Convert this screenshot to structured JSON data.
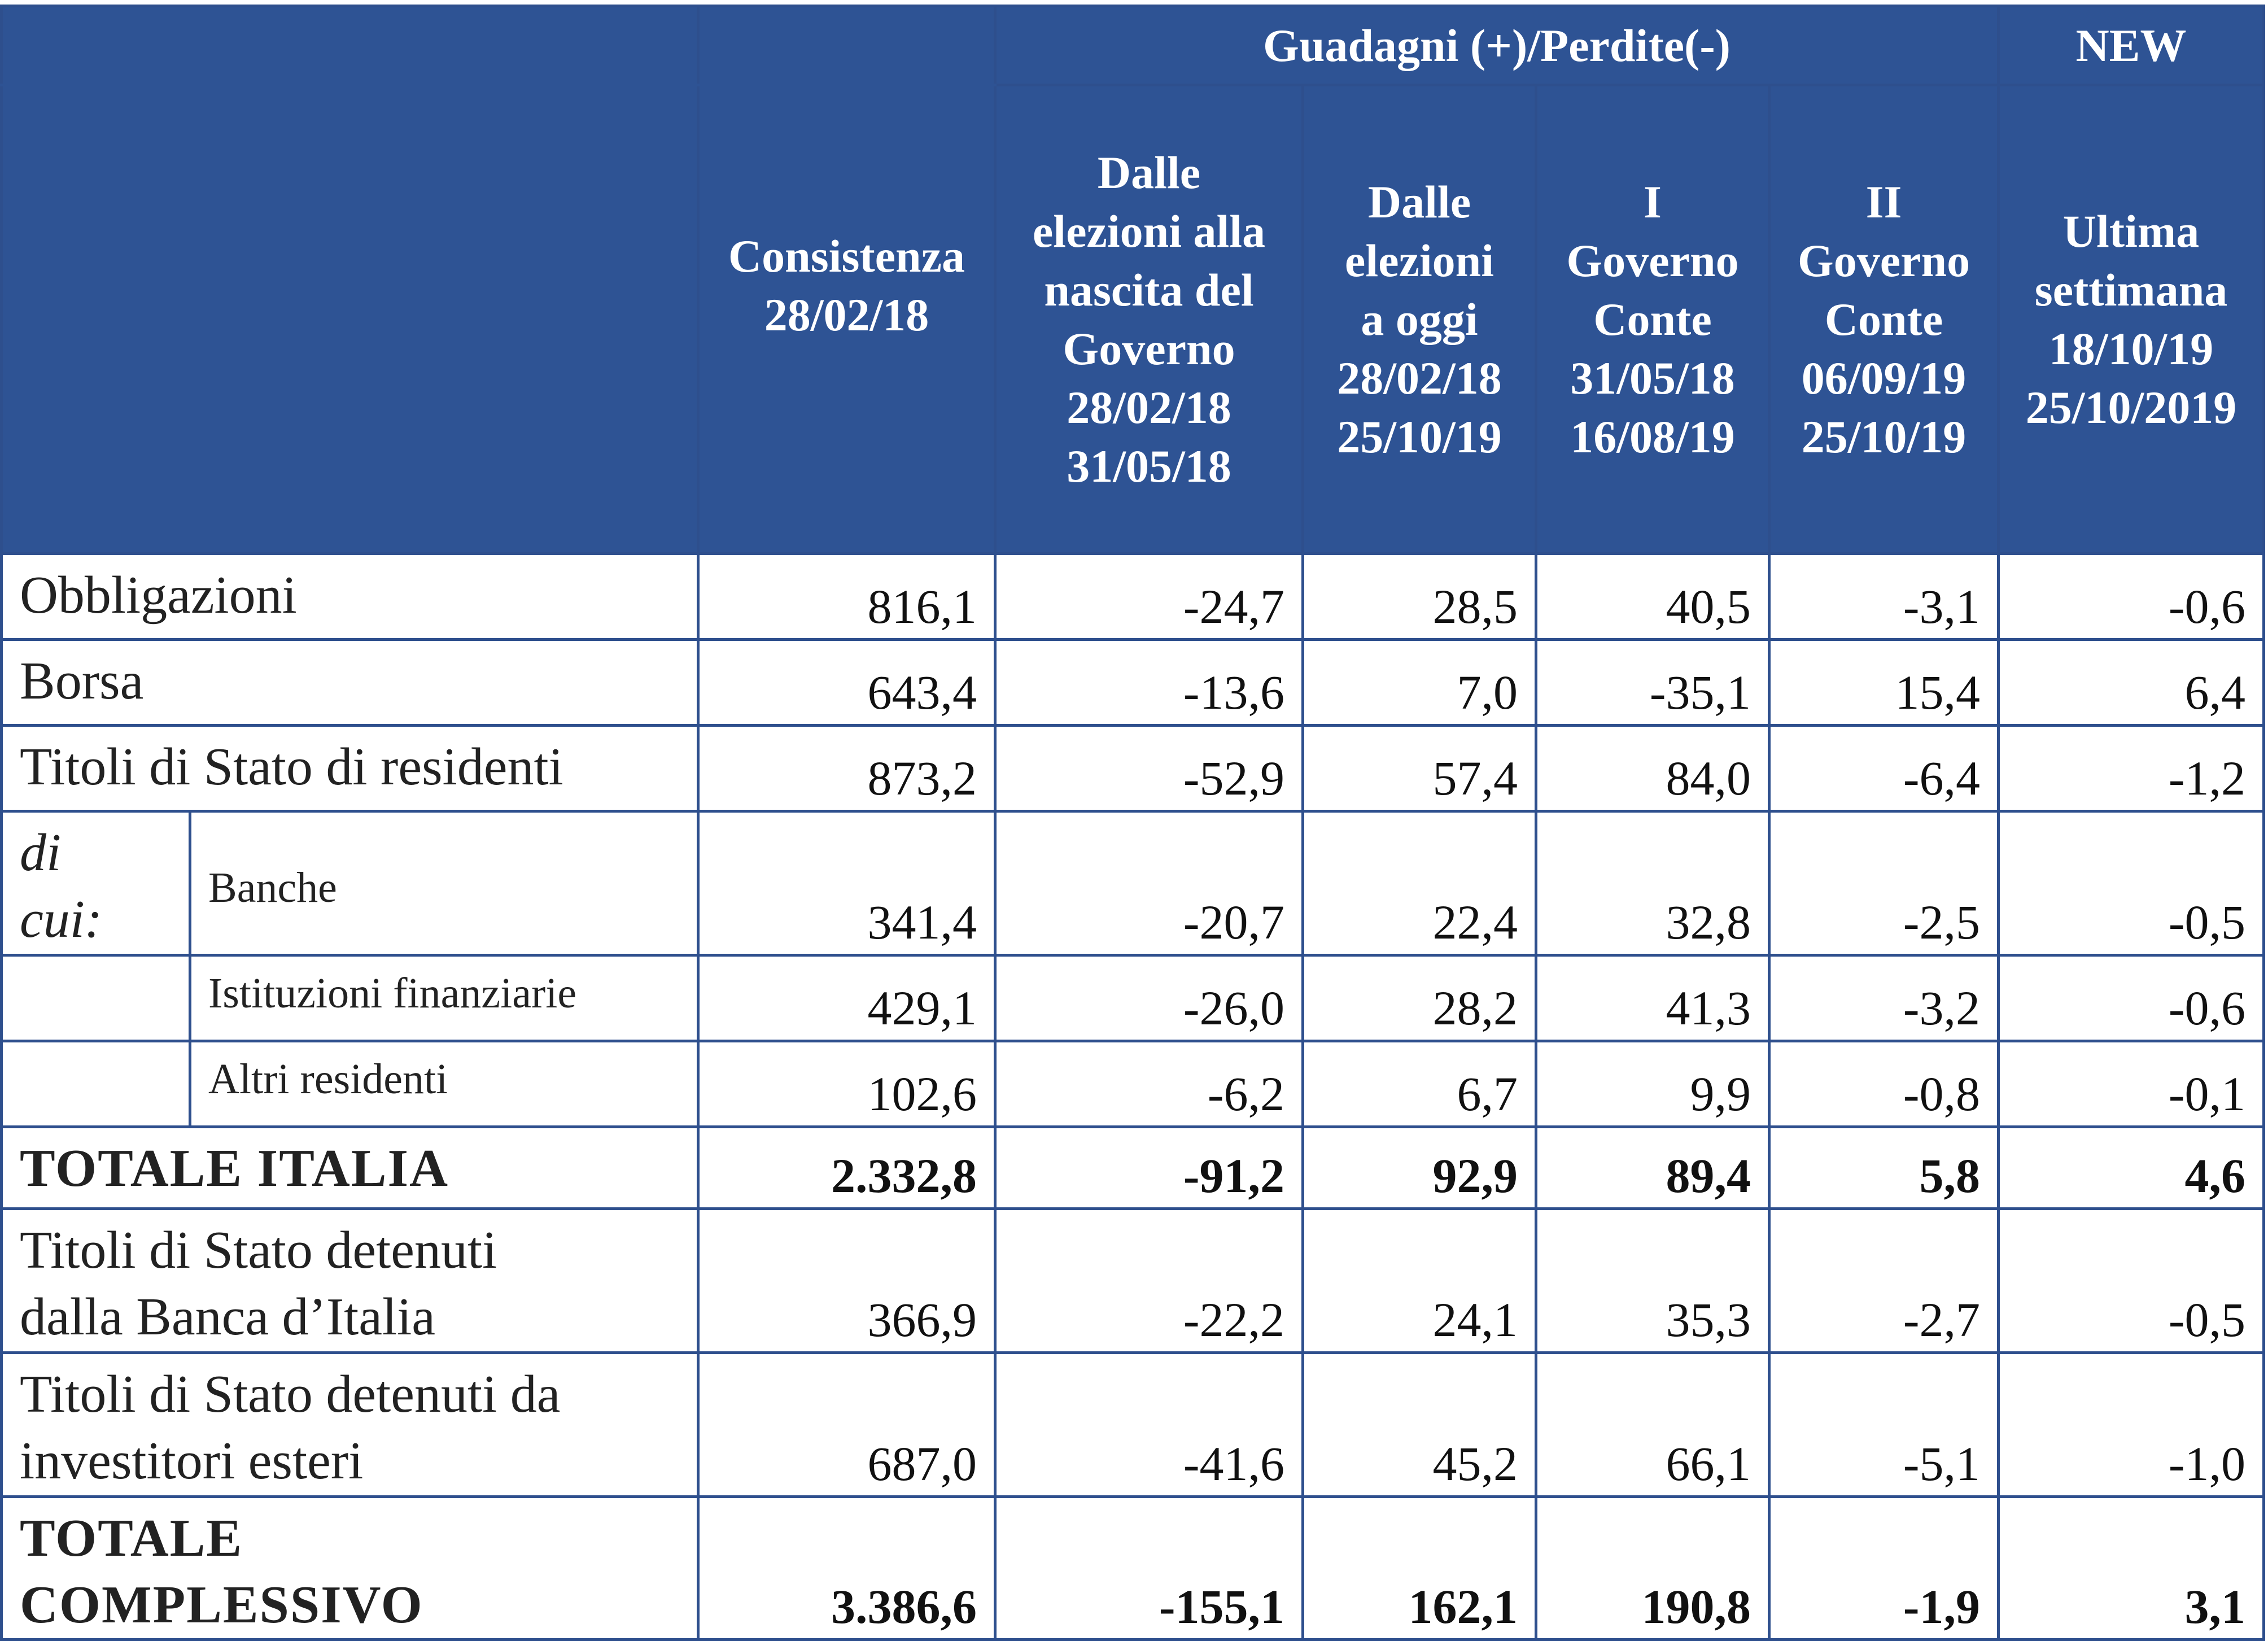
{
  "header": {
    "group_label": "Guadagni (+)/Perdite(-)",
    "new_label": "NEW",
    "col_consistenza": [
      "Consistenza",
      "28/02/18"
    ],
    "col_c2": [
      "Dalle",
      "elezioni alla",
      "nascita del",
      "Governo",
      "28/02/18",
      "31/05/18"
    ],
    "col_c3": [
      "Dalle",
      "elezioni",
      "a oggi",
      "28/02/18",
      "25/10/19"
    ],
    "col_c4": [
      "I",
      "Governo",
      "Conte",
      "31/05/18",
      "16/08/19"
    ],
    "col_c5": [
      "II",
      "Governo",
      "Conte",
      "06/09/19",
      "25/10/19"
    ],
    "col_c6": [
      "Ultima",
      "settimana",
      "18/10/19",
      "25/10/2019"
    ]
  },
  "rows": {
    "obbligazioni": {
      "label": "Obbligazioni",
      "values": [
        "816,1",
        "-24,7",
        "28,5",
        "40,5",
        "-3,1",
        "-0,6"
      ]
    },
    "borsa": {
      "label": "Borsa",
      "values": [
        "643,4",
        "-13,6",
        "7,0",
        "-35,1",
        "15,4",
        "6,4"
      ]
    },
    "titoli_residenti": {
      "label": "Titoli di Stato di residenti",
      "values": [
        "873,2",
        "-52,9",
        "57,4",
        "84,0",
        "-6,4",
        "-1,2"
      ]
    },
    "di_cui": [
      "di",
      "cui:"
    ],
    "banche": {
      "label": "Banche",
      "values": [
        "341,4",
        "-20,7",
        "22,4",
        "32,8",
        "-2,5",
        "-0,5"
      ]
    },
    "istituzioni": {
      "label": "Istituzioni finanziarie",
      "values": [
        "429,1",
        "-26,0",
        "28,2",
        "41,3",
        "-3,2",
        "-0,6"
      ]
    },
    "altri": {
      "label": "Altri residenti",
      "values": [
        "102,6",
        "-6,2",
        "6,7",
        "9,9",
        "-0,8",
        "-0,1"
      ]
    },
    "totale_italia": {
      "label": "TOTALE ITALIA",
      "values": [
        "2.332,8",
        "-91,2",
        "92,9",
        "89,4",
        "5,8",
        "4,6"
      ]
    },
    "banca_italia": {
      "label": [
        "Titoli di Stato detenuti",
        "dalla Banca d’Italia"
      ],
      "values": [
        "366,9",
        "-22,2",
        "24,1",
        "35,3",
        "-2,7",
        "-0,5"
      ]
    },
    "esteri": {
      "label": [
        "Titoli di Stato detenuti da",
        "investitori esteri"
      ],
      "values": [
        "687,0",
        "-41,6",
        "45,2",
        "66,1",
        "-5,1",
        "-1,0"
      ]
    },
    "totale_complessivo": {
      "label": [
        "TOTALE",
        "COMPLESSIVO"
      ],
      "values": [
        "3.386,6",
        "-155,1",
        "162,1",
        "190,8",
        "-1,9",
        "3,1"
      ]
    }
  },
  "colors": {
    "header_bg": "#2e5394",
    "border": "#2e4f8d",
    "text": "#222222"
  }
}
